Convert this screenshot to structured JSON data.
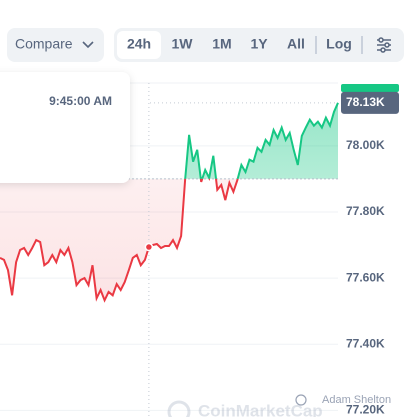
{
  "toolbar": {
    "compare": "Compare",
    "ranges": [
      "24h",
      "1W",
      "1M",
      "1Y",
      "All"
    ],
    "log": "Log"
  },
  "tooltip": {
    "time": "9:45:00 AM"
  },
  "watermark": {
    "brand": "CoinMarketCap",
    "author": "Adam Shelton"
  },
  "chart_data": {
    "type": "line",
    "values": [
      77661,
      77655,
      77624,
      77548,
      77648,
      77685,
      77691,
      77670,
      77691,
      77715,
      77709,
      77639,
      77648,
      77670,
      77648,
      77685,
      77670,
      77691,
      77648,
      77579,
      77594,
      77600,
      77579,
      77639,
      77539,
      77564,
      77533,
      77558,
      77548,
      77582,
      77564,
      77588,
      77624,
      77661,
      77670,
      77639,
      77655,
      77694,
      77700,
      77703,
      77691,
      77697,
      77697,
      77715,
      77691,
      77727,
      77897,
      78033,
      77952,
      77988,
      77891,
      77927,
      77903,
      77970,
      77867,
      77882,
      77836,
      77888,
      77861,
      77897,
      77942,
      77921,
      77958,
      77952,
      77994,
      77982,
      78018,
      78003,
      78048,
      78024,
      78055,
      78018,
      78039,
      77988,
      77942,
      78030,
      78055,
      78079,
      78061,
      78073,
      78055,
      78085,
      78061,
      78103,
      78130
    ],
    "baseline": 77900,
    "colors": {
      "above": "#16c784",
      "below": "#ea3943"
    },
    "ylim": [
      77180,
      78190
    ],
    "yticks": [
      {
        "value": 77200,
        "label": "77.20K"
      },
      {
        "value": 77400,
        "label": "77.40K"
      },
      {
        "value": 77600,
        "label": "77.60K"
      },
      {
        "value": 77800,
        "label": "77.80K"
      },
      {
        "value": 78000,
        "label": "78.00K"
      }
    ],
    "last_label": "78.13K"
  }
}
